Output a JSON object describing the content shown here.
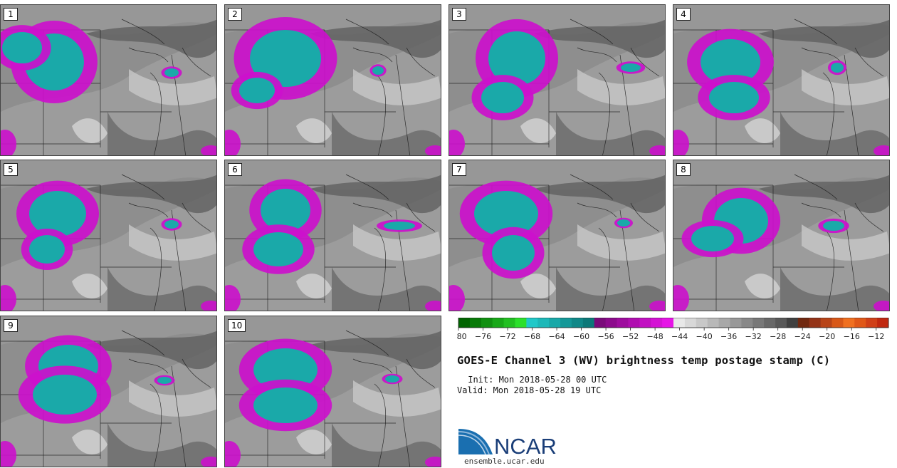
{
  "panels": [
    {
      "label": "1"
    },
    {
      "label": "2"
    },
    {
      "label": "3"
    },
    {
      "label": "4"
    },
    {
      "label": "5"
    },
    {
      "label": "6"
    },
    {
      "label": "7"
    },
    {
      "label": "8"
    },
    {
      "label": "9"
    },
    {
      "label": "10"
    }
  ],
  "colorbar": {
    "min": -80,
    "max": -10,
    "step": 2,
    "tick_labels": [
      "-80",
      "-76",
      "-72",
      "-68",
      "-64",
      "-60",
      "-56",
      "-52",
      "-48",
      "-44",
      "-40",
      "-36",
      "-32",
      "-28",
      "-24",
      "-20",
      "-16",
      "-12"
    ],
    "colors": [
      "#006400",
      "#087a08",
      "#109010",
      "#18a818",
      "#22c022",
      "#2ce02c",
      "#20c8c8",
      "#1cb8b8",
      "#18a8a8",
      "#149898",
      "#108888",
      "#0c7878",
      "#7a0a7a",
      "#8c0a8c",
      "#9e0c9e",
      "#b00eb0",
      "#c210c2",
      "#d412d4",
      "#e614e6",
      "#e8e8e8",
      "#d8d8d8",
      "#c8c8c8",
      "#b8b8b8",
      "#a8a8a8",
      "#989898",
      "#888888",
      "#787878",
      "#686868",
      "#585858",
      "#404040",
      "#702810",
      "#943418",
      "#b84418",
      "#d85818",
      "#f07020",
      "#e05818",
      "#d04018",
      "#c02810"
    ]
  },
  "title": "GOES-E Channel 3 (WV) brightness temp postage stamp (C)",
  "init_text": " Init: Mon 2018-05-28 00 UTC",
  "valid_text": "Valid: Mon 2018-05-28 19 UTC",
  "logo": {
    "text": "NCAR",
    "url": "ensemble.ucar.edu",
    "blue": "#1a6fb0"
  },
  "map_colors": {
    "cloud_magenta": "#cc10cc",
    "cloud_teal": "#1aa9a9",
    "land_gray": "#8e8e8e",
    "border": "#1a1a1a"
  }
}
